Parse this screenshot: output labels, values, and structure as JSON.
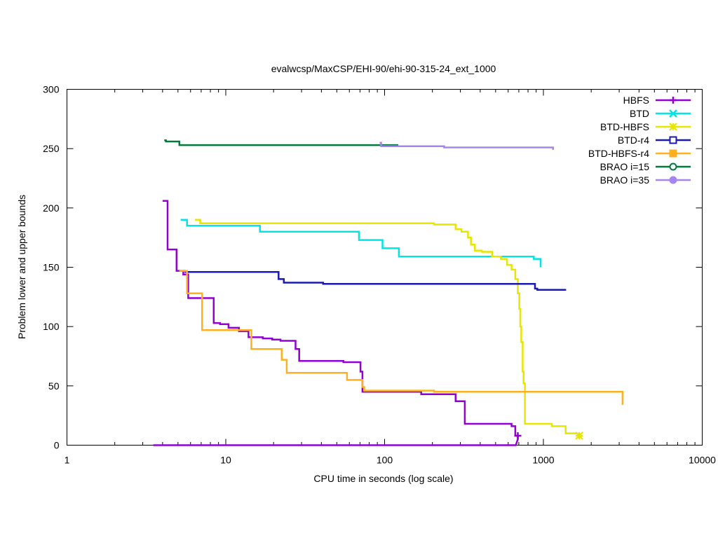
{
  "chart_data": {
    "type": "line",
    "title": "evalwcsp/MaxCSP/EHI-90/ehi-90-315-24_ext_1000",
    "xlabel": "CPU time in seconds (log scale)",
    "ylabel": "Problem lower and upper bounds",
    "xscale": "log",
    "xlim": [
      1,
      10000
    ],
    "ylim": [
      0,
      300
    ],
    "xticks": [
      1,
      10,
      100,
      1000,
      10000
    ],
    "xtick_labels": [
      "1",
      "10",
      "100",
      "1000",
      "10000"
    ],
    "yticks": [
      0,
      50,
      100,
      150,
      200,
      250,
      300
    ],
    "ytick_labels": [
      "0",
      "50",
      "100",
      "150",
      "200",
      "250",
      "300"
    ],
    "grid": false,
    "legend_position": "top-right",
    "series": [
      {
        "name": "HBFS",
        "color": "#9400d3",
        "marker": "plus",
        "upper": [
          [
            4,
            206
          ],
          [
            4.3,
            206
          ],
          [
            4.3,
            165
          ],
          [
            4.9,
            165
          ],
          [
            4.9,
            147
          ],
          [
            5.4,
            147
          ],
          [
            5.4,
            144
          ],
          [
            5.8,
            144
          ],
          [
            5.8,
            124
          ],
          [
            8.4,
            124
          ],
          [
            8.4,
            103
          ],
          [
            9.2,
            103
          ],
          [
            9.2,
            102
          ],
          [
            10.4,
            102
          ],
          [
            10.4,
            99
          ],
          [
            12.1,
            99
          ],
          [
            12.1,
            96
          ],
          [
            13.9,
            96
          ],
          [
            13.9,
            91
          ],
          [
            17.1,
            91
          ],
          [
            17.1,
            90
          ],
          [
            19.6,
            90
          ],
          [
            19.6,
            89
          ],
          [
            22.1,
            89
          ],
          [
            22.1,
            88
          ],
          [
            27.5,
            88
          ],
          [
            27.5,
            81
          ],
          [
            29,
            81
          ],
          [
            29,
            71
          ],
          [
            55,
            71
          ],
          [
            55,
            70
          ],
          [
            70.5,
            70
          ],
          [
            70.5,
            62
          ],
          [
            72.5,
            62
          ],
          [
            72.5,
            45
          ],
          [
            170,
            45
          ],
          [
            170,
            43
          ],
          [
            280,
            43
          ],
          [
            280,
            37
          ],
          [
            320,
            37
          ],
          [
            320,
            18
          ],
          [
            630,
            18
          ],
          [
            630,
            16
          ],
          [
            665,
            16
          ],
          [
            665,
            8
          ],
          [
            690,
            8
          ]
        ],
        "lower": [
          [
            3.5,
            0
          ],
          [
            670,
            0
          ],
          [
            690,
            5
          ],
          [
            690,
            8
          ]
        ],
        "marker_points": [
          [
            690,
            8
          ]
        ]
      },
      {
        "name": "BTD",
        "color": "#00e5e5",
        "marker": "x",
        "upper": [
          [
            5.2,
            190
          ],
          [
            5.7,
            190
          ],
          [
            5.7,
            185
          ],
          [
            16.4,
            185
          ],
          [
            16.4,
            180
          ],
          [
            69,
            180
          ],
          [
            69,
            173
          ],
          [
            97,
            173
          ],
          [
            97,
            166
          ],
          [
            123,
            166
          ],
          [
            123,
            159
          ],
          [
            870,
            159
          ],
          [
            870,
            157
          ],
          [
            960,
            157
          ],
          [
            960,
            150
          ]
        ],
        "lower": [],
        "marker_points": []
      },
      {
        "name": "BTD-HBFS",
        "color": "#e6e600",
        "marker": "star",
        "upper": [
          [
            6.4,
            190
          ],
          [
            6.9,
            190
          ],
          [
            6.9,
            187
          ],
          [
            205,
            187
          ],
          [
            205,
            186
          ],
          [
            280,
            186
          ],
          [
            280,
            182
          ],
          [
            305,
            182
          ],
          [
            305,
            180
          ],
          [
            335,
            180
          ],
          [
            335,
            175
          ],
          [
            350,
            175
          ],
          [
            350,
            169
          ],
          [
            370,
            169
          ],
          [
            370,
            164
          ],
          [
            410,
            164
          ],
          [
            410,
            163
          ],
          [
            475,
            163
          ],
          [
            475,
            159
          ],
          [
            540,
            159
          ],
          [
            540,
            157
          ],
          [
            590,
            157
          ],
          [
            590,
            152
          ],
          [
            630,
            152
          ],
          [
            630,
            148
          ],
          [
            665,
            148
          ],
          [
            665,
            140
          ],
          [
            690,
            140
          ],
          [
            690,
            128
          ],
          [
            705,
            128
          ],
          [
            705,
            115
          ],
          [
            715,
            115
          ],
          [
            715,
            100
          ],
          [
            725,
            100
          ],
          [
            725,
            87
          ],
          [
            740,
            87
          ],
          [
            740,
            62
          ],
          [
            750,
            62
          ],
          [
            750,
            52
          ],
          [
            765,
            52
          ],
          [
            765,
            18
          ],
          [
            1130,
            18
          ],
          [
            1130,
            16
          ],
          [
            1380,
            16
          ],
          [
            1380,
            10
          ],
          [
            1650,
            10
          ]
        ],
        "lower": [],
        "marker_points": [
          [
            1680,
            8
          ]
        ]
      },
      {
        "name": "BTD-r4",
        "color": "#1a1ab3",
        "marker": "open-square",
        "upper": [
          [
            5.5,
            146
          ],
          [
            21.5,
            146
          ],
          [
            21.5,
            140
          ],
          [
            23.2,
            140
          ],
          [
            23.2,
            137
          ],
          [
            41,
            137
          ],
          [
            41,
            136
          ],
          [
            885,
            136
          ],
          [
            885,
            132
          ],
          [
            915,
            132
          ],
          [
            915,
            131
          ],
          [
            1390,
            131
          ]
        ],
        "lower": [],
        "marker_points": []
      },
      {
        "name": "BTD-HBFS-r4",
        "color": "#ffb01f",
        "marker": "filled-square",
        "upper": [
          [
            5.1,
            147
          ],
          [
            5.7,
            147
          ],
          [
            5.7,
            128
          ],
          [
            7.1,
            128
          ],
          [
            7.1,
            97
          ],
          [
            14.5,
            97
          ],
          [
            14.5,
            81
          ],
          [
            22.5,
            81
          ],
          [
            22.5,
            72
          ],
          [
            24.2,
            72
          ],
          [
            24.2,
            61
          ],
          [
            58,
            61
          ],
          [
            58,
            55
          ],
          [
            72.5,
            55
          ],
          [
            72.5,
            49
          ],
          [
            74.5,
            49
          ],
          [
            74.5,
            46
          ],
          [
            205,
            46
          ],
          [
            205,
            45
          ],
          [
            3150,
            45
          ],
          [
            3150,
            34
          ]
        ],
        "lower": [],
        "marker_points": []
      },
      {
        "name": "BRAO i=15",
        "color": "#007a3d",
        "marker": "open-circle",
        "upper": [
          [
            4.1,
            257
          ],
          [
            4.2,
            257
          ],
          [
            4.2,
            256
          ],
          [
            5.1,
            256
          ],
          [
            5.1,
            253
          ],
          [
            122,
            253
          ]
        ],
        "lower": [],
        "marker_points": []
      },
      {
        "name": "BRAO i=35",
        "color": "#a585f0",
        "marker": "filled-circle",
        "upper": [
          [
            93,
            255
          ],
          [
            95,
            255
          ],
          [
            95,
            252
          ],
          [
            237,
            252
          ],
          [
            237,
            251
          ],
          [
            1150,
            251
          ],
          [
            1150,
            249
          ]
        ],
        "lower": [],
        "marker_points": []
      }
    ]
  }
}
